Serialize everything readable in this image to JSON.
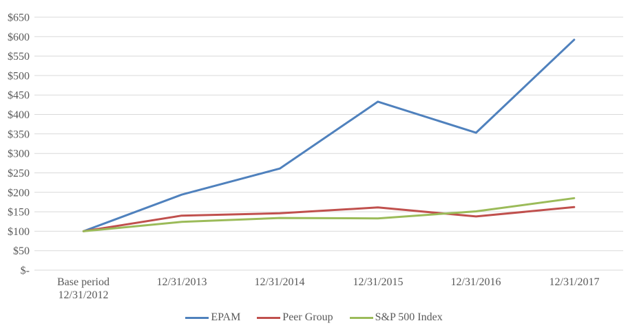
{
  "chart_data": {
    "type": "line",
    "title": "",
    "categories": [
      "Base period\n12/31/2012",
      "12/31/2013",
      "12/31/2014",
      "12/31/2015",
      "12/31/2016",
      "12/31/2017"
    ],
    "series": [
      {
        "name": "EPAM",
        "color": "#4F81BD",
        "values": [
          100,
          194,
          261,
          433,
          353,
          592
        ]
      },
      {
        "name": "Peer Group",
        "color": "#C0504D",
        "values": [
          100,
          140,
          146,
          161,
          138,
          162
        ]
      },
      {
        "name": "S&P 500 Index",
        "color": "#9BBB59",
        "values": [
          100,
          124,
          134,
          133,
          151,
          185
        ]
      }
    ],
    "y_axis": {
      "min": 0,
      "max": 650,
      "step": 50,
      "tick_labels": [
        "$650",
        "$600",
        "$550",
        "$500",
        "$450",
        "$400",
        "$350",
        "$300",
        "$250",
        "$200",
        "$150",
        "$100",
        "$50",
        "$-"
      ]
    },
    "x_axis": {
      "label": ""
    },
    "legend_position": "bottom",
    "grid": "horizontal",
    "colors": {
      "gridline": "#D9D9D9",
      "text": "#595959",
      "background": "#FFFFFF"
    }
  }
}
